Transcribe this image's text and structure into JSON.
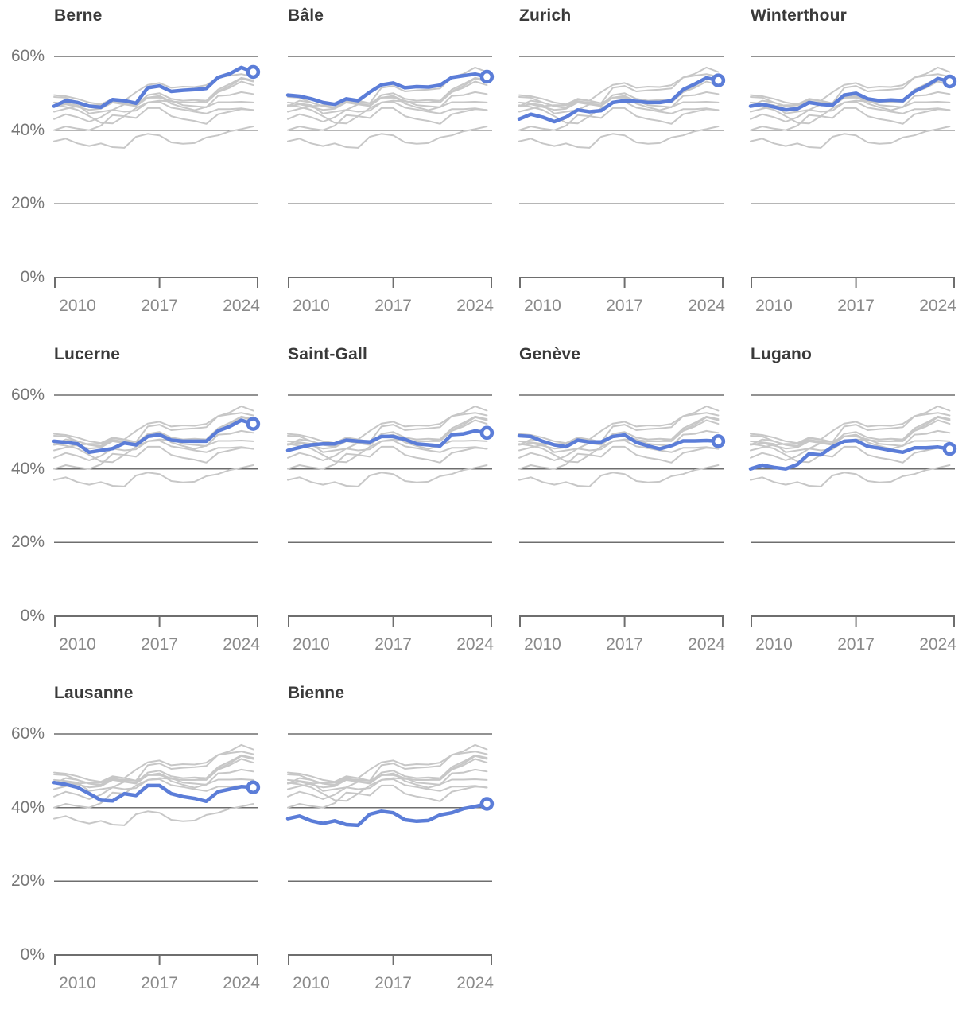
{
  "chart_data": {
    "type": "line",
    "layout": "small-multiples",
    "unit": "%",
    "x": [
      2008,
      2009,
      2010,
      2011,
      2012,
      2013,
      2014,
      2015,
      2016,
      2017,
      2018,
      2019,
      2020,
      2021,
      2022,
      2023,
      2024,
      2025
    ],
    "x_axis": {
      "tick_labels": [
        "2010",
        "2017",
        "2024"
      ],
      "tick_years": [
        2010,
        2017,
        2024
      ],
      "range": [
        2008,
        2025.45
      ]
    },
    "y_axis": {
      "tick_labels": [
        "60%",
        "40%",
        "20%",
        "0%"
      ],
      "tick_values": [
        60,
        40,
        20,
        0
      ],
      "ylim": [
        0,
        62
      ],
      "grid": true,
      "labels_on_first_column_only": true
    },
    "style": {
      "highlight_color": "#5b7dd8",
      "context_color": "#c7c7c7",
      "grid_color": "#6e6e6e",
      "title_color": "#3a3a3a",
      "y_label_color": "#777777",
      "x_label_color": "#8a8a8a",
      "end_marker": "open-circle",
      "marker_fill": "#ffffff"
    },
    "series": [
      {
        "id": "berne",
        "name": "Berne",
        "values": [
          46.5,
          48.0,
          47.5,
          46.5,
          46.2,
          48.3,
          48.0,
          47.3,
          51.5,
          52.0,
          50.5,
          50.8,
          51.0,
          51.3,
          54.3,
          55.3,
          57.0,
          55.8
        ]
      },
      {
        "id": "bale",
        "name": "Bâle",
        "values": [
          49.5,
          49.2,
          48.5,
          47.5,
          47.0,
          48.5,
          48.0,
          50.3,
          52.3,
          52.8,
          51.5,
          51.8,
          51.7,
          52.2,
          54.3,
          54.8,
          55.2,
          54.5
        ]
      },
      {
        "id": "zurich",
        "name": "Zurich",
        "values": [
          43.0,
          44.3,
          43.5,
          42.3,
          43.5,
          45.5,
          45.0,
          45.3,
          47.5,
          48.0,
          47.8,
          47.5,
          47.5,
          48.0,
          51.0,
          52.5,
          54.2,
          53.5
        ]
      },
      {
        "id": "winterthour",
        "name": "Winterthour",
        "values": [
          46.5,
          47.0,
          46.3,
          45.5,
          45.8,
          47.5,
          47.0,
          46.8,
          49.5,
          50.0,
          48.5,
          48.0,
          48.2,
          48.0,
          50.5,
          52.0,
          54.0,
          53.2
        ]
      },
      {
        "id": "lucerne",
        "name": "Lucerne",
        "values": [
          47.5,
          47.2,
          46.8,
          44.5,
          45.0,
          45.5,
          47.0,
          46.5,
          48.8,
          49.3,
          47.8,
          47.5,
          47.5,
          47.5,
          50.3,
          51.5,
          53.2,
          52.2
        ]
      },
      {
        "id": "saint-gall",
        "name": "Saint-Gall",
        "values": [
          45.0,
          45.8,
          46.5,
          46.8,
          46.8,
          47.8,
          47.5,
          47.3,
          48.8,
          48.8,
          48.0,
          46.8,
          46.5,
          46.2,
          49.3,
          49.5,
          50.3,
          49.8
        ]
      },
      {
        "id": "geneve",
        "name": "Genève",
        "values": [
          49.0,
          48.8,
          47.5,
          46.5,
          46.0,
          47.8,
          47.3,
          47.3,
          48.8,
          49.2,
          47.2,
          46.2,
          45.4,
          46.3,
          47.6,
          47.6,
          47.7,
          47.5
        ]
      },
      {
        "id": "lugano",
        "name": "Lugano",
        "values": [
          40.0,
          41.0,
          40.4,
          40.0,
          41.2,
          44.1,
          43.8,
          46.0,
          47.5,
          47.7,
          46.1,
          45.6,
          45.0,
          44.5,
          45.7,
          45.7,
          45.9,
          45.4
        ]
      },
      {
        "id": "lausanne",
        "name": "Lausanne",
        "values": [
          46.8,
          46.3,
          45.5,
          43.8,
          42.0,
          41.8,
          43.8,
          43.3,
          46.0,
          46.0,
          43.8,
          43.0,
          42.5,
          41.7,
          44.3,
          45.0,
          45.7,
          45.5
        ]
      },
      {
        "id": "bienne",
        "name": "Bienne",
        "values": [
          37.0,
          37.7,
          36.4,
          35.7,
          36.4,
          35.4,
          35.2,
          38.2,
          39.0,
          38.6,
          36.7,
          36.3,
          36.5,
          38.0,
          38.6,
          39.7,
          40.3,
          41.0
        ]
      }
    ]
  }
}
